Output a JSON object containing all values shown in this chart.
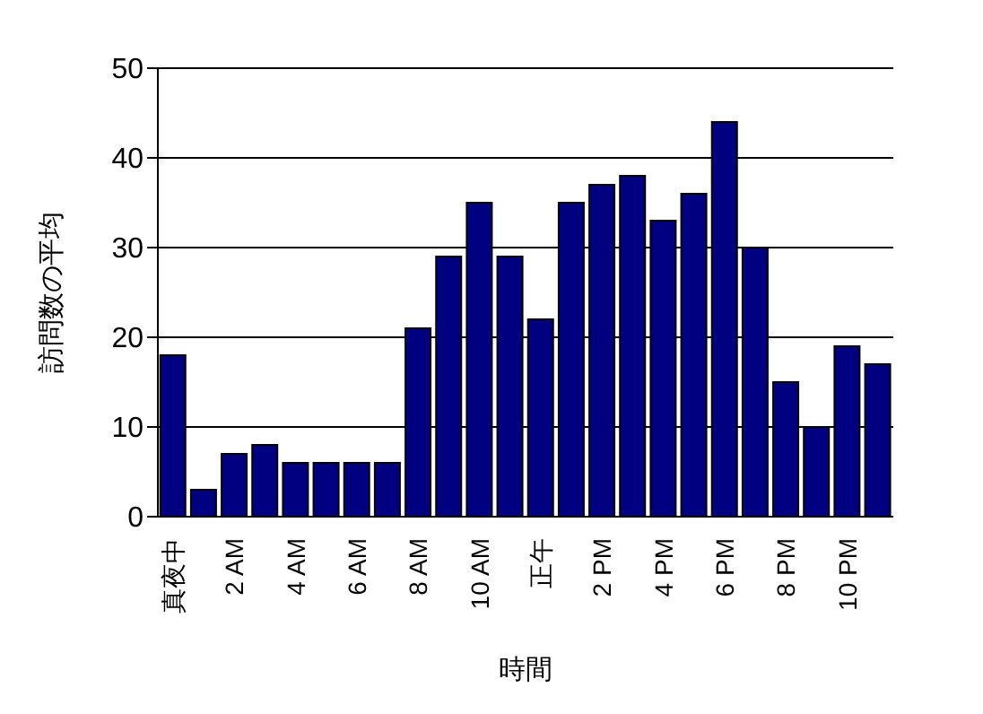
{
  "chart_data": {
    "type": "bar",
    "xlabel": "時間",
    "ylabel": "訪問数の平均",
    "categories": [
      "真夜中",
      null,
      "2 AM",
      null,
      "4 AM",
      null,
      "6 AM",
      null,
      "8 AM",
      null,
      "10 AM",
      null,
      "正午",
      null,
      "2 PM",
      null,
      "4 PM",
      null,
      "6 PM",
      null,
      "8 PM",
      null,
      "10 PM",
      null
    ],
    "values": [
      18,
      3,
      7,
      8,
      6,
      6,
      6,
      6,
      21,
      29,
      35,
      29,
      22,
      35,
      37,
      38,
      33,
      36,
      44,
      30,
      15,
      10,
      19,
      17
    ],
    "color": "#000080",
    "ylim": [
      0,
      50
    ],
    "yticks": [
      0,
      10,
      20,
      30,
      40,
      50
    ],
    "grid": "y"
  }
}
